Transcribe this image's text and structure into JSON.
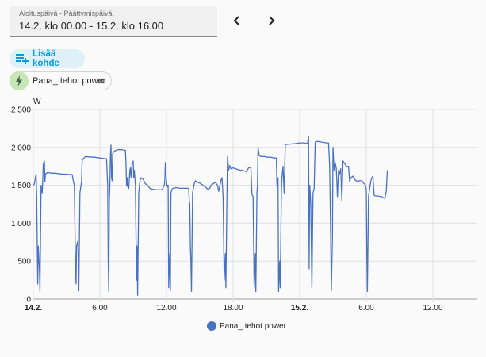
{
  "date_range": {
    "label": "Aloituspäivä - Päättymispäivä",
    "value": "14.2. klo 00.00 - 15.2. klo 16.00"
  },
  "nav": {
    "prev_icon": "chevron-left-icon",
    "next_icon": "chevron-right-icon"
  },
  "add_target": {
    "label": "Lisää kohde",
    "icon": "playlist-plus-icon"
  },
  "entity_chip": {
    "label": "Pana_ tehot power",
    "icon": "lightning-bolt-icon",
    "avatar_color": "#c7e6b6"
  },
  "colors": {
    "accent": "#039be5",
    "series": "#4a72c4"
  },
  "chart_data": {
    "type": "line",
    "ylabel": "W",
    "ylim": [
      0,
      2500
    ],
    "yticks": [
      "0",
      "500",
      "1 000",
      "1 500",
      "2 000",
      "2 500"
    ],
    "yticks_values": [
      0,
      500,
      1000,
      1500,
      2000,
      2500
    ],
    "xlim": [
      0,
      40
    ],
    "xticks": [
      {
        "label": "14.2.",
        "hour": 0,
        "bold": true
      },
      {
        "label": "6.00",
        "hour": 6,
        "bold": false
      },
      {
        "label": "12.00",
        "hour": 12,
        "bold": false
      },
      {
        "label": "18.00",
        "hour": 18,
        "bold": false
      },
      {
        "label": "15.2.",
        "hour": 24,
        "bold": true
      },
      {
        "label": "6.00",
        "hour": 30,
        "bold": false
      },
      {
        "label": "12.00",
        "hour": 36,
        "bold": false
      }
    ],
    "grid": true,
    "legend_position": "bottom",
    "series": [
      {
        "name": "Pana_ tehot power",
        "points": [
          [
            0.0,
            1500
          ],
          [
            0.1,
            1520
          ],
          [
            0.2,
            1610
          ],
          [
            0.25,
            1650
          ],
          [
            0.3,
            1400
          ],
          [
            0.35,
            800
          ],
          [
            0.4,
            200
          ],
          [
            0.45,
            700
          ],
          [
            0.55,
            400
          ],
          [
            0.6,
            100
          ],
          [
            0.7,
            1500
          ],
          [
            0.8,
            1400
          ],
          [
            0.85,
            1560
          ],
          [
            0.9,
            1780
          ],
          [
            1.0,
            1820
          ],
          [
            1.05,
            1550
          ],
          [
            1.1,
            1650
          ],
          [
            1.3,
            1670
          ],
          [
            1.6,
            1660
          ],
          [
            2.0,
            1660
          ],
          [
            2.5,
            1650
          ],
          [
            3.0,
            1645
          ],
          [
            3.5,
            1640
          ],
          [
            3.6,
            1560
          ],
          [
            3.7,
            1500
          ],
          [
            3.8,
            400
          ],
          [
            3.85,
            200
          ],
          [
            3.9,
            700
          ],
          [
            4.0,
            760
          ],
          [
            4.05,
            600
          ],
          [
            4.1,
            110
          ],
          [
            4.2,
            1400
          ],
          [
            4.3,
            1500
          ],
          [
            4.35,
            1550
          ],
          [
            4.4,
            1820
          ],
          [
            4.5,
            1850
          ],
          [
            4.7,
            1880
          ],
          [
            5.0,
            1875
          ],
          [
            5.5,
            1870
          ],
          [
            6.0,
            1860
          ],
          [
            6.5,
            1850
          ],
          [
            6.6,
            1850
          ],
          [
            6.7,
            1500
          ],
          [
            6.75,
            500
          ],
          [
            6.8,
            100
          ],
          [
            6.85,
            1300
          ],
          [
            6.9,
            1500
          ],
          [
            6.95,
            1900
          ],
          [
            7.0,
            2030
          ],
          [
            7.05,
            1600
          ],
          [
            7.1,
            1560
          ],
          [
            7.15,
            1920
          ],
          [
            7.3,
            1950
          ],
          [
            7.6,
            1970
          ],
          [
            8.0,
            1970
          ],
          [
            8.3,
            1960
          ],
          [
            8.35,
            1800
          ],
          [
            8.4,
            1500
          ],
          [
            8.45,
            1600
          ],
          [
            8.5,
            1480
          ],
          [
            8.6,
            1460
          ],
          [
            8.7,
            1700
          ],
          [
            8.75,
            1730
          ],
          [
            8.8,
            1600
          ],
          [
            8.9,
            1780
          ],
          [
            9.0,
            1820
          ],
          [
            9.05,
            1600
          ],
          [
            9.1,
            1700
          ],
          [
            9.2,
            1500
          ],
          [
            9.3,
            250
          ],
          [
            9.35,
            700
          ],
          [
            9.4,
            50
          ],
          [
            9.5,
            1400
          ],
          [
            9.6,
            1550
          ],
          [
            9.7,
            1600
          ],
          [
            9.9,
            1580
          ],
          [
            10.0,
            1550
          ],
          [
            10.1,
            1520
          ],
          [
            10.3,
            1500
          ],
          [
            10.5,
            1460
          ],
          [
            10.7,
            1450
          ],
          [
            11.0,
            1440
          ],
          [
            11.3,
            1440
          ],
          [
            11.6,
            1440
          ],
          [
            11.8,
            1500
          ],
          [
            11.85,
            1560
          ],
          [
            11.9,
            1800
          ],
          [
            11.95,
            1650
          ],
          [
            12.0,
            1550
          ],
          [
            12.05,
            1500
          ],
          [
            12.1,
            1480
          ],
          [
            12.15,
            1500
          ],
          [
            12.2,
            150
          ],
          [
            12.3,
            600
          ],
          [
            12.35,
            110
          ],
          [
            12.4,
            1400
          ],
          [
            12.5,
            1450
          ],
          [
            12.6,
            1460
          ],
          [
            12.9,
            1470
          ],
          [
            13.2,
            1460
          ],
          [
            13.5,
            1460
          ],
          [
            13.8,
            1460
          ],
          [
            14.0,
            1460
          ],
          [
            14.05,
            1300
          ],
          [
            14.1,
            1250
          ],
          [
            14.15,
            700
          ],
          [
            14.2,
            500
          ],
          [
            14.25,
            100
          ],
          [
            14.35,
            1400
          ],
          [
            14.5,
            1520
          ],
          [
            14.6,
            1560
          ],
          [
            14.8,
            1540
          ],
          [
            15.0,
            1530
          ],
          [
            15.1,
            1520
          ],
          [
            15.3,
            1500
          ],
          [
            15.5,
            1480
          ],
          [
            15.7,
            1450
          ],
          [
            15.9,
            1460
          ],
          [
            16.0,
            1500
          ],
          [
            16.2,
            1520
          ],
          [
            16.4,
            1540
          ],
          [
            16.6,
            1500
          ],
          [
            16.7,
            1420
          ],
          [
            16.9,
            1560
          ],
          [
            17.0,
            1600
          ],
          [
            17.1,
            1350
          ],
          [
            17.2,
            250
          ],
          [
            17.3,
            600
          ],
          [
            17.35,
            150
          ],
          [
            17.45,
            1400
          ],
          [
            17.5,
            1880
          ],
          [
            17.6,
            1700
          ],
          [
            17.7,
            1760
          ],
          [
            17.8,
            1720
          ],
          [
            18.0,
            1730
          ],
          [
            18.2,
            1720
          ],
          [
            18.4,
            1710
          ],
          [
            18.6,
            1700
          ],
          [
            18.8,
            1700
          ],
          [
            19.0,
            1690
          ],
          [
            19.2,
            1680
          ],
          [
            19.4,
            1730
          ],
          [
            19.6,
            1740
          ],
          [
            19.7,
            1380
          ],
          [
            19.8,
            1350
          ],
          [
            19.85,
            750
          ],
          [
            19.9,
            150
          ],
          [
            20.0,
            600
          ],
          [
            20.05,
            100
          ],
          [
            20.15,
            1400
          ],
          [
            20.2,
            1500
          ],
          [
            20.25,
            2000
          ],
          [
            20.3,
            1950
          ],
          [
            20.35,
            1890
          ],
          [
            20.5,
            1880
          ],
          [
            20.8,
            1880
          ],
          [
            21.1,
            1870
          ],
          [
            21.4,
            1870
          ],
          [
            21.7,
            1860
          ],
          [
            21.9,
            1860
          ],
          [
            21.95,
            1500
          ],
          [
            22.0,
            1500
          ],
          [
            22.05,
            1600
          ],
          [
            22.1,
            100
          ],
          [
            22.2,
            500
          ],
          [
            22.25,
            150
          ],
          [
            22.35,
            1400
          ],
          [
            22.4,
            1600
          ],
          [
            22.5,
            1750
          ],
          [
            22.6,
            1400
          ],
          [
            22.7,
            2030
          ],
          [
            22.8,
            2040
          ],
          [
            23.2,
            2045
          ],
          [
            23.6,
            2050
          ],
          [
            24.0,
            2060
          ],
          [
            24.4,
            2060
          ],
          [
            24.7,
            2050
          ],
          [
            24.8,
            2150
          ],
          [
            24.85,
            400
          ],
          [
            24.9,
            1500
          ],
          [
            24.95,
            1400
          ],
          [
            25.0,
            1250
          ],
          [
            25.05,
            700
          ],
          [
            25.1,
            150
          ],
          [
            25.2,
            1400
          ],
          [
            25.3,
            1450
          ],
          [
            25.4,
            2070
          ],
          [
            25.6,
            2080
          ],
          [
            26.0,
            2070
          ],
          [
            26.4,
            2060
          ],
          [
            26.6,
            2060
          ],
          [
            26.7,
            1750
          ],
          [
            26.8,
            750
          ],
          [
            26.85,
            110
          ],
          [
            26.95,
            800
          ],
          [
            27.0,
            2000
          ],
          [
            27.1,
            1700
          ],
          [
            27.2,
            1800
          ],
          [
            27.3,
            1720
          ],
          [
            27.4,
            1350
          ],
          [
            27.5,
            1700
          ],
          [
            27.6,
            1650
          ],
          [
            27.7,
            1720
          ],
          [
            27.8,
            1300
          ],
          [
            27.9,
            1820
          ],
          [
            28.0,
            1800
          ],
          [
            28.2,
            1750
          ],
          [
            28.4,
            1750
          ],
          [
            28.5,
            1550
          ],
          [
            28.6,
            1600
          ],
          [
            28.8,
            1620
          ],
          [
            29.0,
            1570
          ],
          [
            29.2,
            1550
          ],
          [
            29.4,
            1560
          ],
          [
            29.6,
            1560
          ],
          [
            29.8,
            1520
          ],
          [
            29.9,
            1510
          ],
          [
            30.0,
            1450
          ],
          [
            30.05,
            600
          ],
          [
            30.1,
            100
          ],
          [
            30.2,
            1350
          ],
          [
            30.3,
            1450
          ],
          [
            30.4,
            1550
          ],
          [
            30.5,
            1600
          ],
          [
            30.6,
            1620
          ],
          [
            30.7,
            1370
          ],
          [
            30.8,
            1360
          ],
          [
            31.0,
            1360
          ],
          [
            31.2,
            1355
          ],
          [
            31.4,
            1350
          ],
          [
            31.6,
            1330
          ],
          [
            31.7,
            1350
          ],
          [
            31.8,
            1420
          ],
          [
            31.85,
            1580
          ],
          [
            31.9,
            1700
          ]
        ]
      }
    ]
  }
}
